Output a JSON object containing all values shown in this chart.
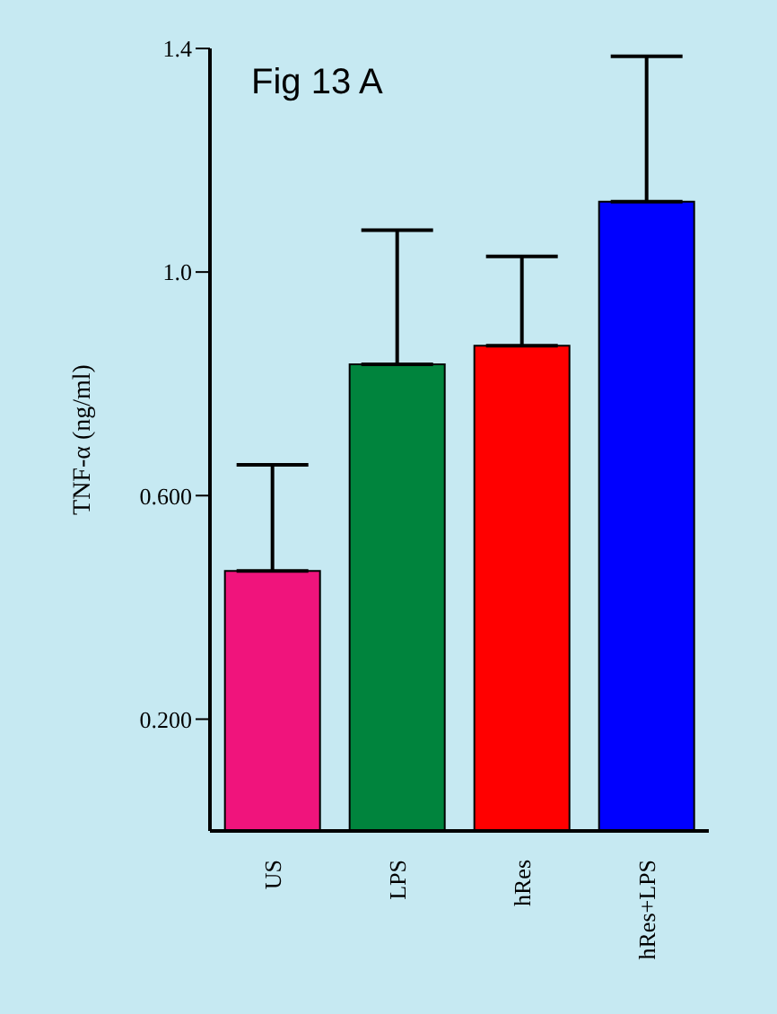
{
  "chart_data": {
    "type": "bar",
    "title": "Fig 13 A",
    "ylabel": "TNF-α (ng/ml)",
    "categories": [
      "US",
      "LPS",
      "hRes",
      "hRes+LPS"
    ],
    "values": [
      0.465,
      0.835,
      0.868,
      1.126
    ],
    "colors": [
      "#f0147c",
      "#00843d",
      "#ff0000",
      "#0000ff"
    ],
    "errors": [
      [
        0.465,
        0.655
      ],
      [
        0.835,
        1.075
      ],
      [
        0.868,
        1.028
      ],
      [
        1.126,
        1.386
      ]
    ],
    "ylim": [
      0,
      1.4
    ],
    "yticks": [
      {
        "value": 0.2,
        "label": "0.200"
      },
      {
        "value": 0.6,
        "label": "0.600"
      },
      {
        "value": 1.0,
        "label": "1.0"
      },
      {
        "value": 1.4,
        "label": "1.4"
      }
    ],
    "grid": false,
    "legend": false
  }
}
